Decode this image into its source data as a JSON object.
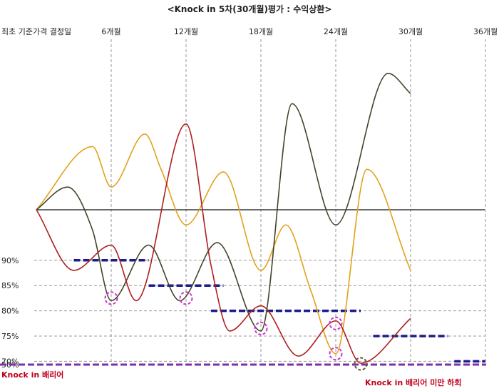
{
  "chart_data": {
    "type": "line",
    "title": "<Knock in 5차(30개월)평가 : 수익상환>",
    "x_ticks": [
      "최초 기준가격 결정일",
      "6개월",
      "12개월",
      "18개월",
      "24개월",
      "30개월",
      "36개월"
    ],
    "x_tick_months": [
      0,
      6,
      12,
      18,
      24,
      30,
      36
    ],
    "y_ticks": [
      "90%",
      "85%",
      "80%",
      "75%",
      "70%",
      "50%"
    ],
    "y_tick_values": [
      90,
      85,
      80,
      75,
      70,
      50
    ],
    "start_level": 100,
    "barrier": {
      "value": 50,
      "label": "Knock in 배리어",
      "color": "#7b2fa8"
    },
    "breach_note": "Knock in 배리어 미만 하회",
    "redemption_barriers": [
      {
        "value": 90,
        "from": 3,
        "to": 9
      },
      {
        "value": 85,
        "from": 9,
        "to": 15
      },
      {
        "value": 80,
        "from": 14,
        "to": 26
      },
      {
        "value": 75,
        "from": 27,
        "to": 33
      },
      {
        "value": 70,
        "from": 33.5,
        "to": 36
      }
    ],
    "series": [
      {
        "color": "#e2a11a",
        "x": [
          0,
          4.5,
          6,
          8.7,
          10,
          12,
          15,
          18,
          20,
          22,
          24,
          26.5,
          30
        ],
        "y": [
          100,
          112.5,
          104.5,
          115,
          108,
          97,
          107.5,
          88,
          97,
          84,
          71.5,
          108,
          88
        ]
      },
      {
        "color": "#43432a",
        "x": [
          0,
          2.5,
          4.5,
          6,
          9,
          11.5,
          14.5,
          18,
          20.5,
          24,
          28.2,
          30
        ],
        "y": [
          100,
          104.5,
          96,
          82,
          93,
          82,
          93.5,
          76,
          121,
          97,
          127,
          123
        ]
      },
      {
        "color": "#b01e1e",
        "x": [
          0,
          3,
          6,
          8,
          12,
          14,
          15.5,
          18,
          21,
          24,
          26,
          30
        ],
        "y": [
          100,
          88,
          93,
          82,
          117,
          89,
          76,
          81,
          56,
          78,
          51,
          78.5
        ]
      }
    ],
    "highlights": [
      {
        "x": 6,
        "y": 82.5,
        "color": "#cc33cc"
      },
      {
        "x": 12,
        "y": 82.5,
        "color": "#cc33cc"
      },
      {
        "x": 18,
        "y": 76.5,
        "color": "#cc33cc"
      },
      {
        "x": 24,
        "y": 77.5,
        "color": "#cc33cc"
      },
      {
        "x": 24,
        "y": 71.5,
        "color": "#cc33cc"
      },
      {
        "x": 26,
        "y": 50.5,
        "color": "#5a5a2a"
      }
    ],
    "grid": true,
    "colors": {
      "barrier_dash": "#1c1c8c",
      "grid": "#9a9a9a",
      "baseline": "#111111"
    }
  }
}
